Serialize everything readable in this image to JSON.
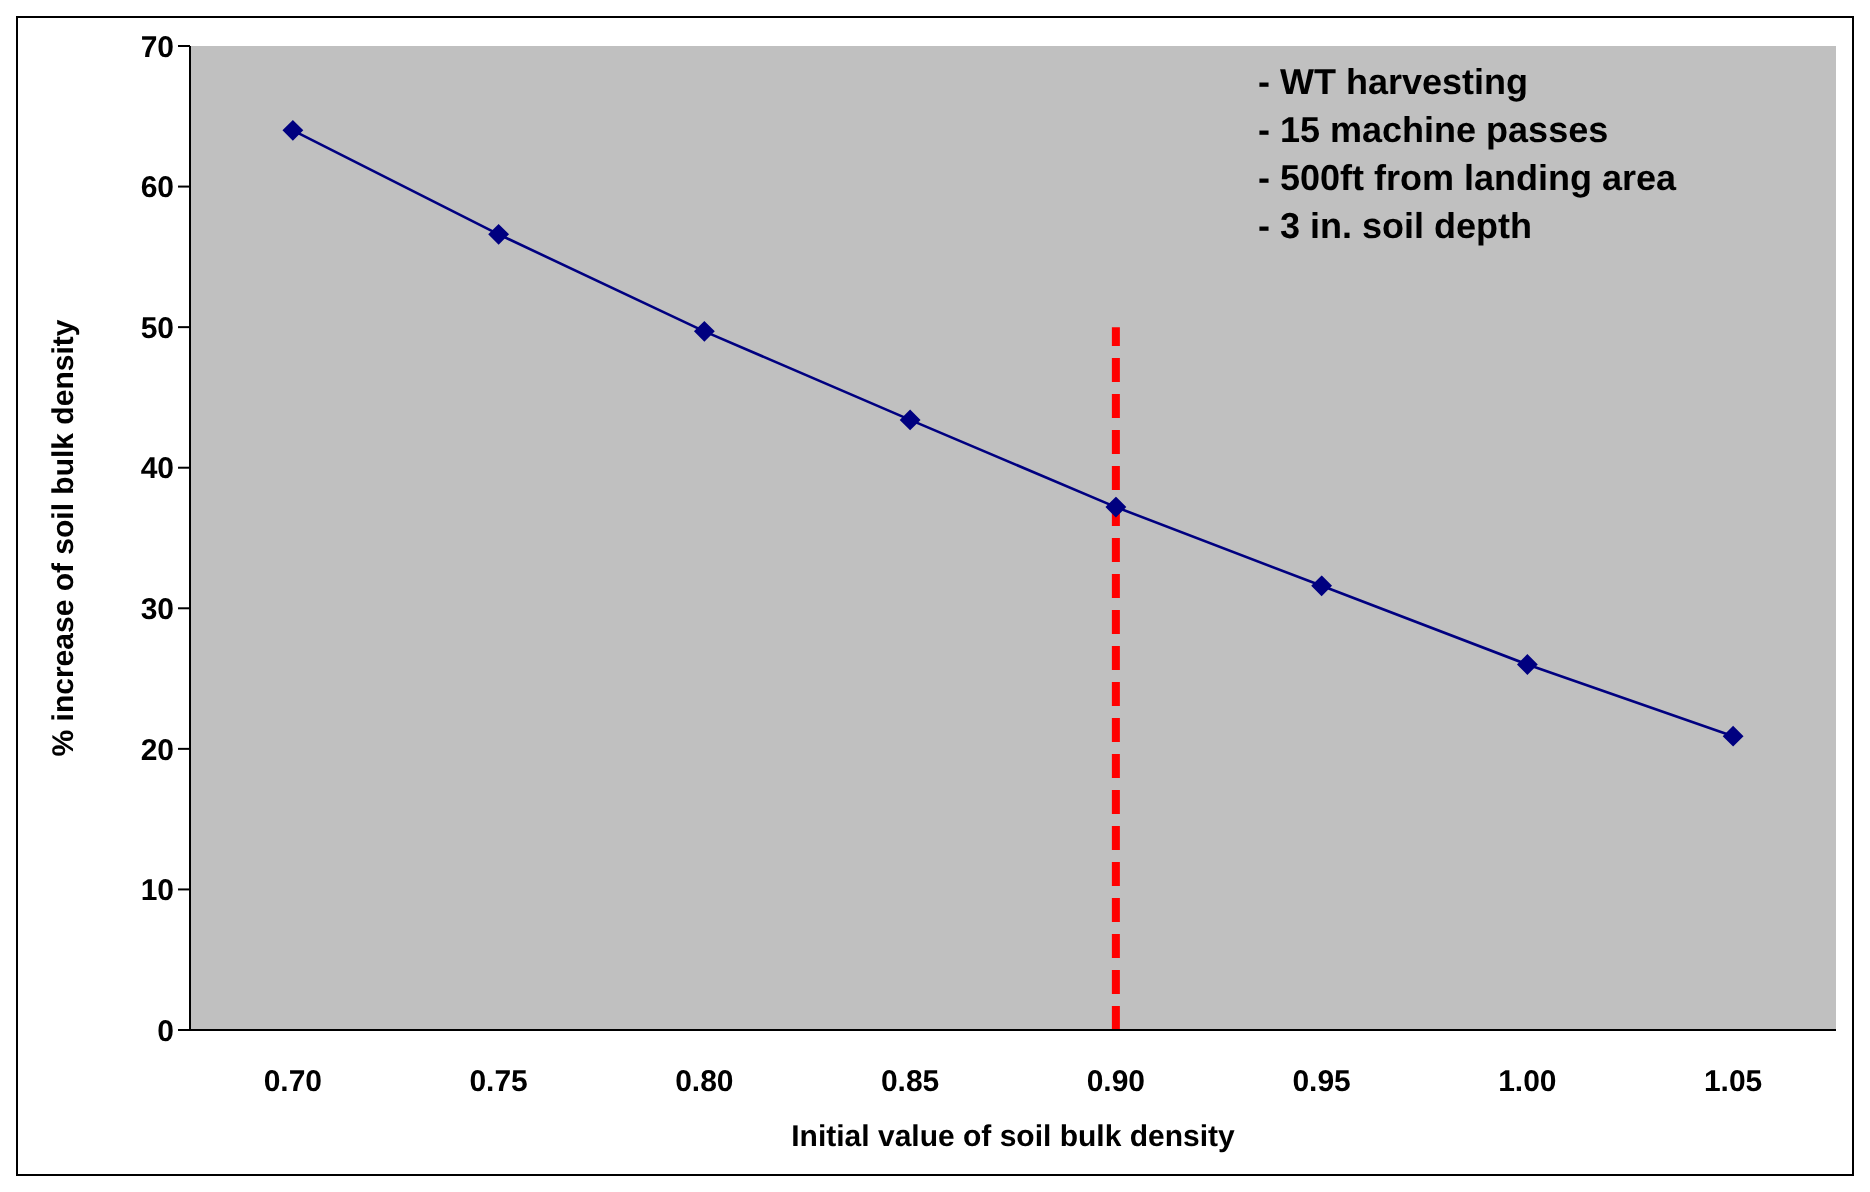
{
  "chart_data": {
    "type": "line",
    "xlabel": "Initial value of soil bulk density",
    "ylabel": "% increase of soil bulk density",
    "categories": [
      "0.70",
      "0.75",
      "0.80",
      "0.85",
      "0.90",
      "0.95",
      "1.00",
      "1.05"
    ],
    "series": [
      {
        "color": "#000080",
        "values": [
          64,
          56.6,
          49.7,
          43.4,
          37.2,
          31.6,
          26,
          20.9
        ],
        "marker": "diamond",
        "line_style": "solid"
      },
      {
        "color": "#ff0000",
        "x": [
          "0.90",
          "0.90"
        ],
        "values": [
          0,
          50
        ],
        "marker": "none",
        "line_style": "dashed"
      }
    ],
    "ylim": [
      0,
      70
    ],
    "yticks": [
      0,
      10,
      20,
      30,
      40,
      50,
      60,
      70
    ],
    "annotations": [
      "- WT harvesting",
      "- 15 machine passes",
      "- 500ft from landing area",
      "- 3 in. soil depth"
    ]
  }
}
